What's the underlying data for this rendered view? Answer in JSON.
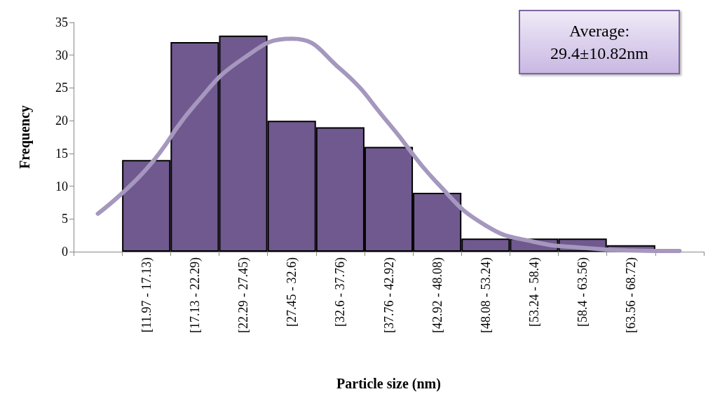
{
  "chart_data": {
    "type": "bar",
    "xlabel": "Particle size (nm)",
    "ylabel": "Frequency",
    "categories": [
      null,
      "[11.97 - 17.13)",
      "[17.13 - 22.29)",
      "[22.29 - 27.45)",
      "[27.45 - 32.6)",
      "[32.6 - 37.76)",
      "[37.76 - 42.92)",
      "[42.92 - 48.08)",
      "[48.08 - 53.24)",
      "[53.24 - 58.4)",
      "[58.4 - 63.56)",
      "[63.56 - 68.72)",
      null
    ],
    "series": [
      {
        "color": "#70598f",
        "values": [
          null,
          14,
          32,
          33,
          20,
          19,
          16,
          9,
          2,
          2,
          2,
          1,
          null
        ]
      },
      {
        "type": "line",
        "color": "#a597be",
        "values": [
          5.8,
          12.6,
          22.4,
          29.5,
          32.5,
          27.9,
          19.6,
          10.5,
          4.0,
          1.5,
          0.6,
          0.2,
          0.1
        ]
      }
    ],
    "ylim": [
      0,
      35
    ],
    "yticks": [
      0,
      5,
      10,
      15,
      20,
      25,
      30,
      35
    ],
    "grid": false,
    "marker": "none",
    "annotations": [
      "Average:\n29.4±10.82nm"
    ]
  }
}
